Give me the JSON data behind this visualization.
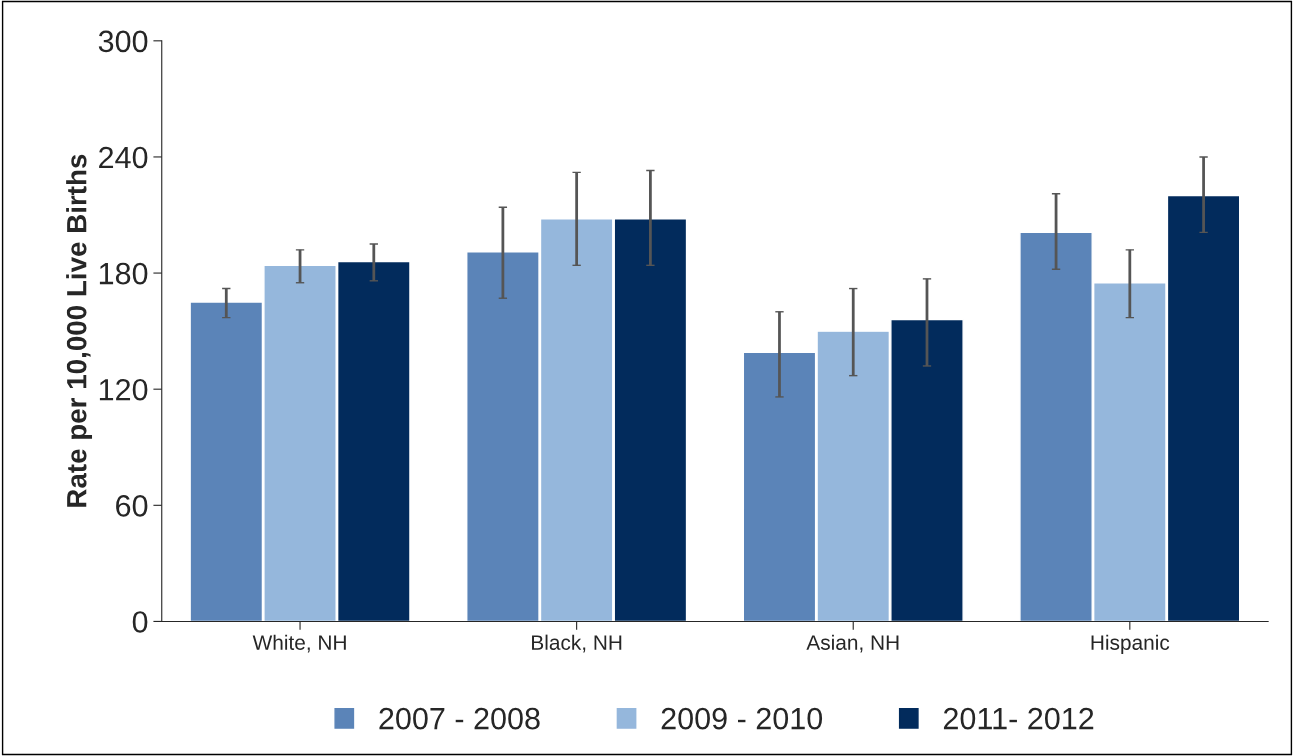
{
  "chart_data": {
    "type": "bar",
    "ylabel": "Rate per 10,000 Live Births",
    "categories": [
      "White, NH",
      "Black, NH",
      "Asian, NH",
      "Hispanic"
    ],
    "series": [
      {
        "name": "2007 - 2008",
        "color": "#5b84b8",
        "values": [
          165,
          191,
          139,
          201
        ],
        "errors": [
          [
            157,
            172
          ],
          [
            167,
            214
          ],
          [
            116,
            160
          ],
          [
            182,
            221
          ]
        ]
      },
      {
        "name": "2009 - 2010",
        "color": "#95b7dc",
        "values": [
          184,
          208,
          150,
          175
        ],
        "errors": [
          [
            175,
            192
          ],
          [
            184,
            232
          ],
          [
            127,
            172
          ],
          [
            157,
            192
          ]
        ]
      },
      {
        "name": "2011- 2012",
        "color": "#022b5c",
        "values": [
          186,
          208,
          156,
          220
        ],
        "errors": [
          [
            176,
            195
          ],
          [
            184,
            233
          ],
          [
            132,
            177
          ],
          [
            201,
            240
          ]
        ]
      }
    ],
    "ylim": [
      0,
      300
    ],
    "yticks": [
      0,
      60,
      120,
      180,
      240,
      300
    ],
    "grid": false,
    "legend": "bottom"
  }
}
